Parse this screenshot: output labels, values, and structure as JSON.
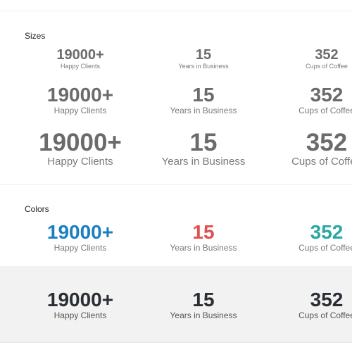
{
  "sections": {
    "sizes": "Sizes",
    "colors": "Colors"
  },
  "stats": {
    "clients": {
      "number": "19000+",
      "label": "Happy Clients"
    },
    "years": {
      "number": "15",
      "label": "Years in Business"
    },
    "coffee": {
      "number": "352",
      "label": "Cups of Coffee"
    }
  },
  "colors": {
    "default_number": "#6b6b6b",
    "default_label": "#7a7a7a",
    "blue": "#1a7fc1",
    "red": "#e05050",
    "teal": "#2aa7a5",
    "dark": "#2a2f35",
    "grey_band": "#f2f2f2"
  }
}
